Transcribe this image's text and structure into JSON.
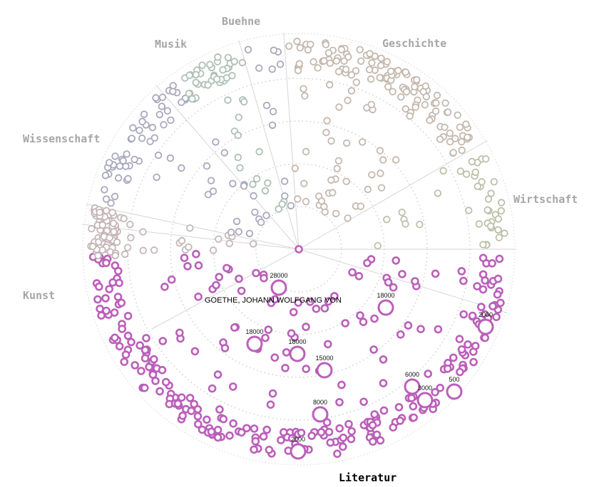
{
  "chart_data": {
    "type": "scatter",
    "title": "",
    "focus_item": "GOETHE, JOHANN WOLFGANG VON",
    "active_category": "Literatur",
    "categories": [
      {
        "name": "Literatur",
        "color": "#bb5fba",
        "count": 300
      },
      {
        "name": "Kunst",
        "color": "#c4b6b8",
        "count": 85
      },
      {
        "name": "Wissenschaft",
        "color": "#a9a8bd",
        "count": 70
      },
      {
        "name": "Musik",
        "color": "#aec0b5",
        "count": 52
      },
      {
        "name": "Buehne",
        "color": "#a8a9b9",
        "count": 12
      },
      {
        "name": "Geschichte",
        "color": "#c4b8ae",
        "count": 160
      },
      {
        "name": "Wirtschaft",
        "color": "#bdbfaa",
        "count": 40
      }
    ],
    "labeled_points": [
      {
        "category": "Literatur",
        "value": 28000
      },
      {
        "category": "Literatur",
        "value": 18000
      },
      {
        "category": "Literatur",
        "value": 18000
      },
      {
        "category": "Literatur",
        "value": 18000
      },
      {
        "category": "Literatur",
        "value": 15000
      },
      {
        "category": "Literatur",
        "value": 8000
      },
      {
        "category": "Literatur",
        "value": 6000
      },
      {
        "category": "Literatur",
        "value": 3000
      },
      {
        "category": "Literatur",
        "value": 2000
      },
      {
        "category": "Literatur",
        "value": 2000
      },
      {
        "category": "Literatur",
        "value": 500
      }
    ]
  }
}
